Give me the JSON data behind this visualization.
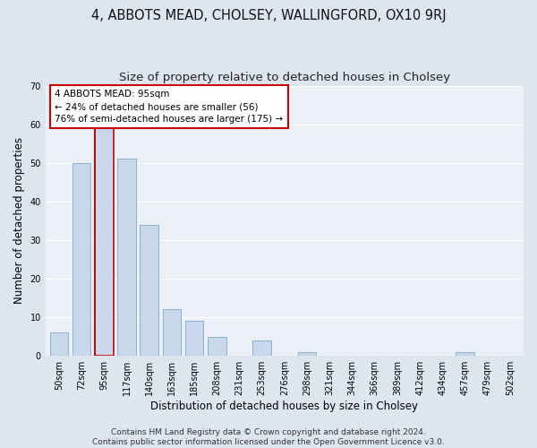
{
  "title": "4, ABBOTS MEAD, CHOLSEY, WALLINGFORD, OX10 9RJ",
  "subtitle": "Size of property relative to detached houses in Cholsey",
  "xlabel": "Distribution of detached houses by size in Cholsey",
  "ylabel": "Number of detached properties",
  "categories": [
    "50sqm",
    "72sqm",
    "95sqm",
    "117sqm",
    "140sqm",
    "163sqm",
    "185sqm",
    "208sqm",
    "231sqm",
    "253sqm",
    "276sqm",
    "298sqm",
    "321sqm",
    "344sqm",
    "366sqm",
    "389sqm",
    "412sqm",
    "434sqm",
    "457sqm",
    "479sqm",
    "502sqm"
  ],
  "values": [
    6,
    50,
    59,
    51,
    34,
    12,
    9,
    5,
    0,
    4,
    0,
    1,
    0,
    0,
    0,
    0,
    0,
    0,
    1,
    0,
    0
  ],
  "highlight_index": 2,
  "bar_color": "#c8d8ea",
  "bar_edge_color": "#7aaac8",
  "highlight_bar_edge_color": "#cc0000",
  "annotation_text": "4 ABBOTS MEAD: 95sqm\n← 24% of detached houses are smaller (56)\n76% of semi-detached houses are larger (175) →",
  "annotation_box_color": "#ffffff",
  "annotation_box_edge_color": "#cc0000",
  "ylim": [
    0,
    70
  ],
  "yticks": [
    0,
    10,
    20,
    30,
    40,
    50,
    60,
    70
  ],
  "bg_color": "#dde6ef",
  "plot_bg_color": "#eaf0f6",
  "grid_color": "#ffffff",
  "footer": "Contains HM Land Registry data © Crown copyright and database right 2024.\nContains public sector information licensed under the Open Government Licence v3.0.",
  "title_fontsize": 10.5,
  "subtitle_fontsize": 9.5,
  "xlabel_fontsize": 8.5,
  "ylabel_fontsize": 8.5,
  "tick_fontsize": 7,
  "footer_fontsize": 6.5,
  "annotation_fontsize": 7.5
}
